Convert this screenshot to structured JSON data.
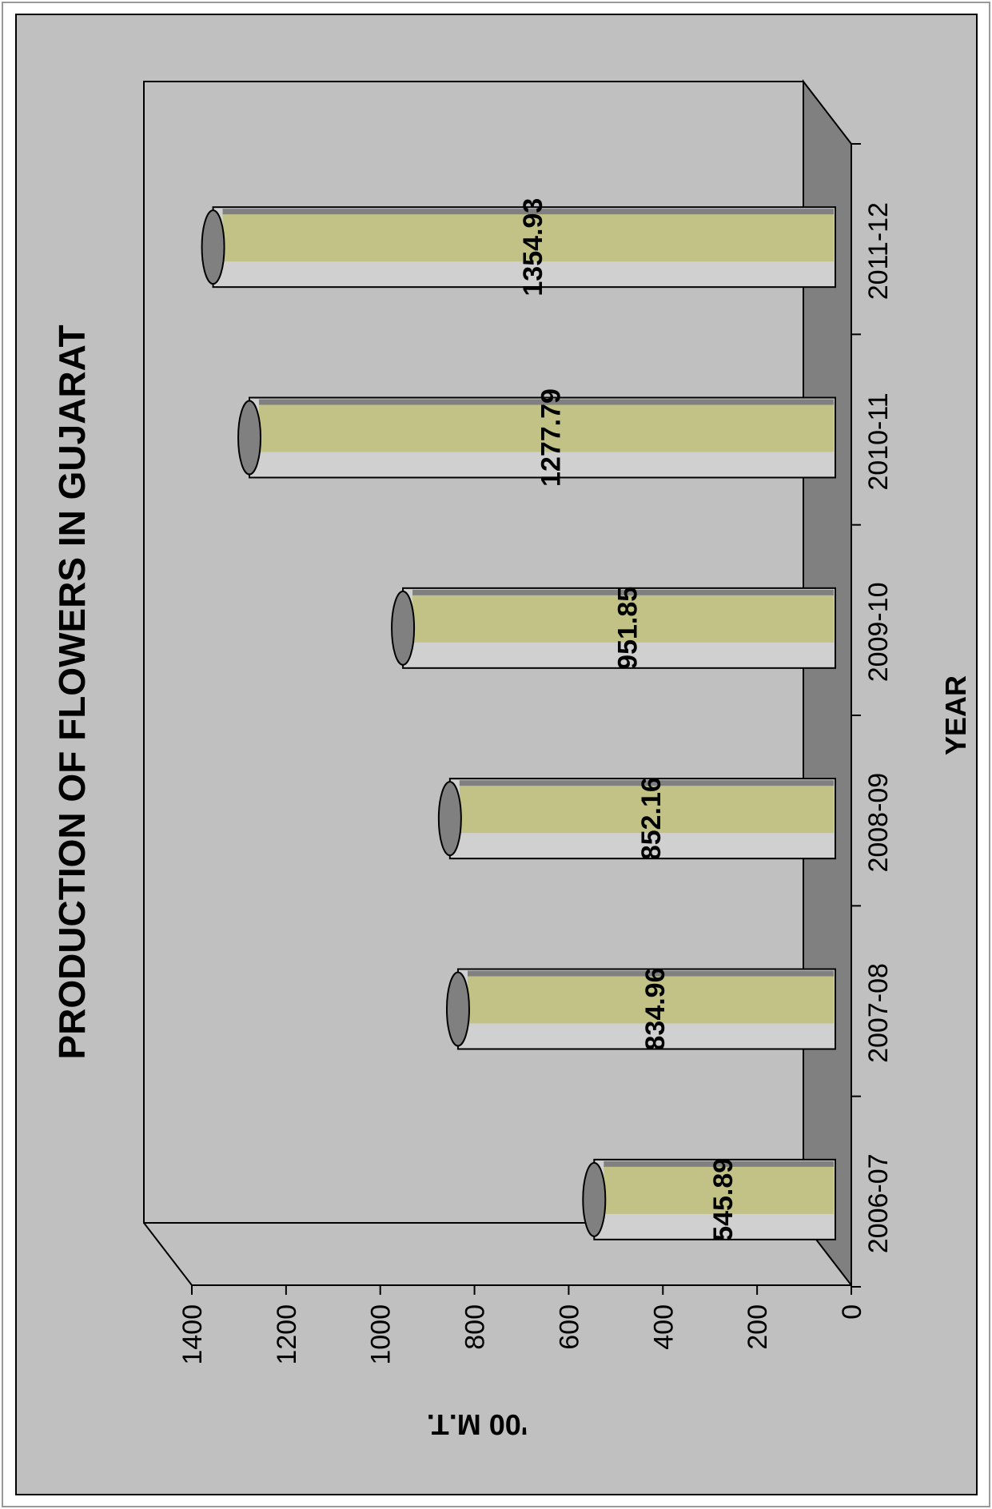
{
  "chart_data": {
    "type": "bar",
    "orientation": "horizontal",
    "rotated": "90deg-counterclockwise",
    "title": "PRODUCTION OF FLOWERS IN GUJARAT",
    "xlabel": "YEAR",
    "ylabel": "'00 M.T.",
    "categories": [
      "2006-07",
      "2007-08",
      "2008-09",
      "2009-10",
      "2010-11",
      "2011-12"
    ],
    "values": [
      545.89,
      834.96,
      852.16,
      951.85,
      1277.79,
      1354.93
    ],
    "data_labels": [
      "545.89",
      "834.96",
      "852.16",
      "951.85",
      "1277.79",
      "1354.93"
    ],
    "ylim": [
      0,
      1400
    ],
    "yticks": [
      0,
      200,
      400,
      600,
      800,
      1000,
      1200,
      1400
    ],
    "grid": false,
    "legend": "none",
    "style": "3d-cylinder",
    "colors": {
      "background": "#c0c0c0",
      "bar_top": "#c2c286",
      "bar_body": "#d0d0d0",
      "bar_end": "#808080",
      "floor": "#808080",
      "outline": "#000000"
    }
  }
}
